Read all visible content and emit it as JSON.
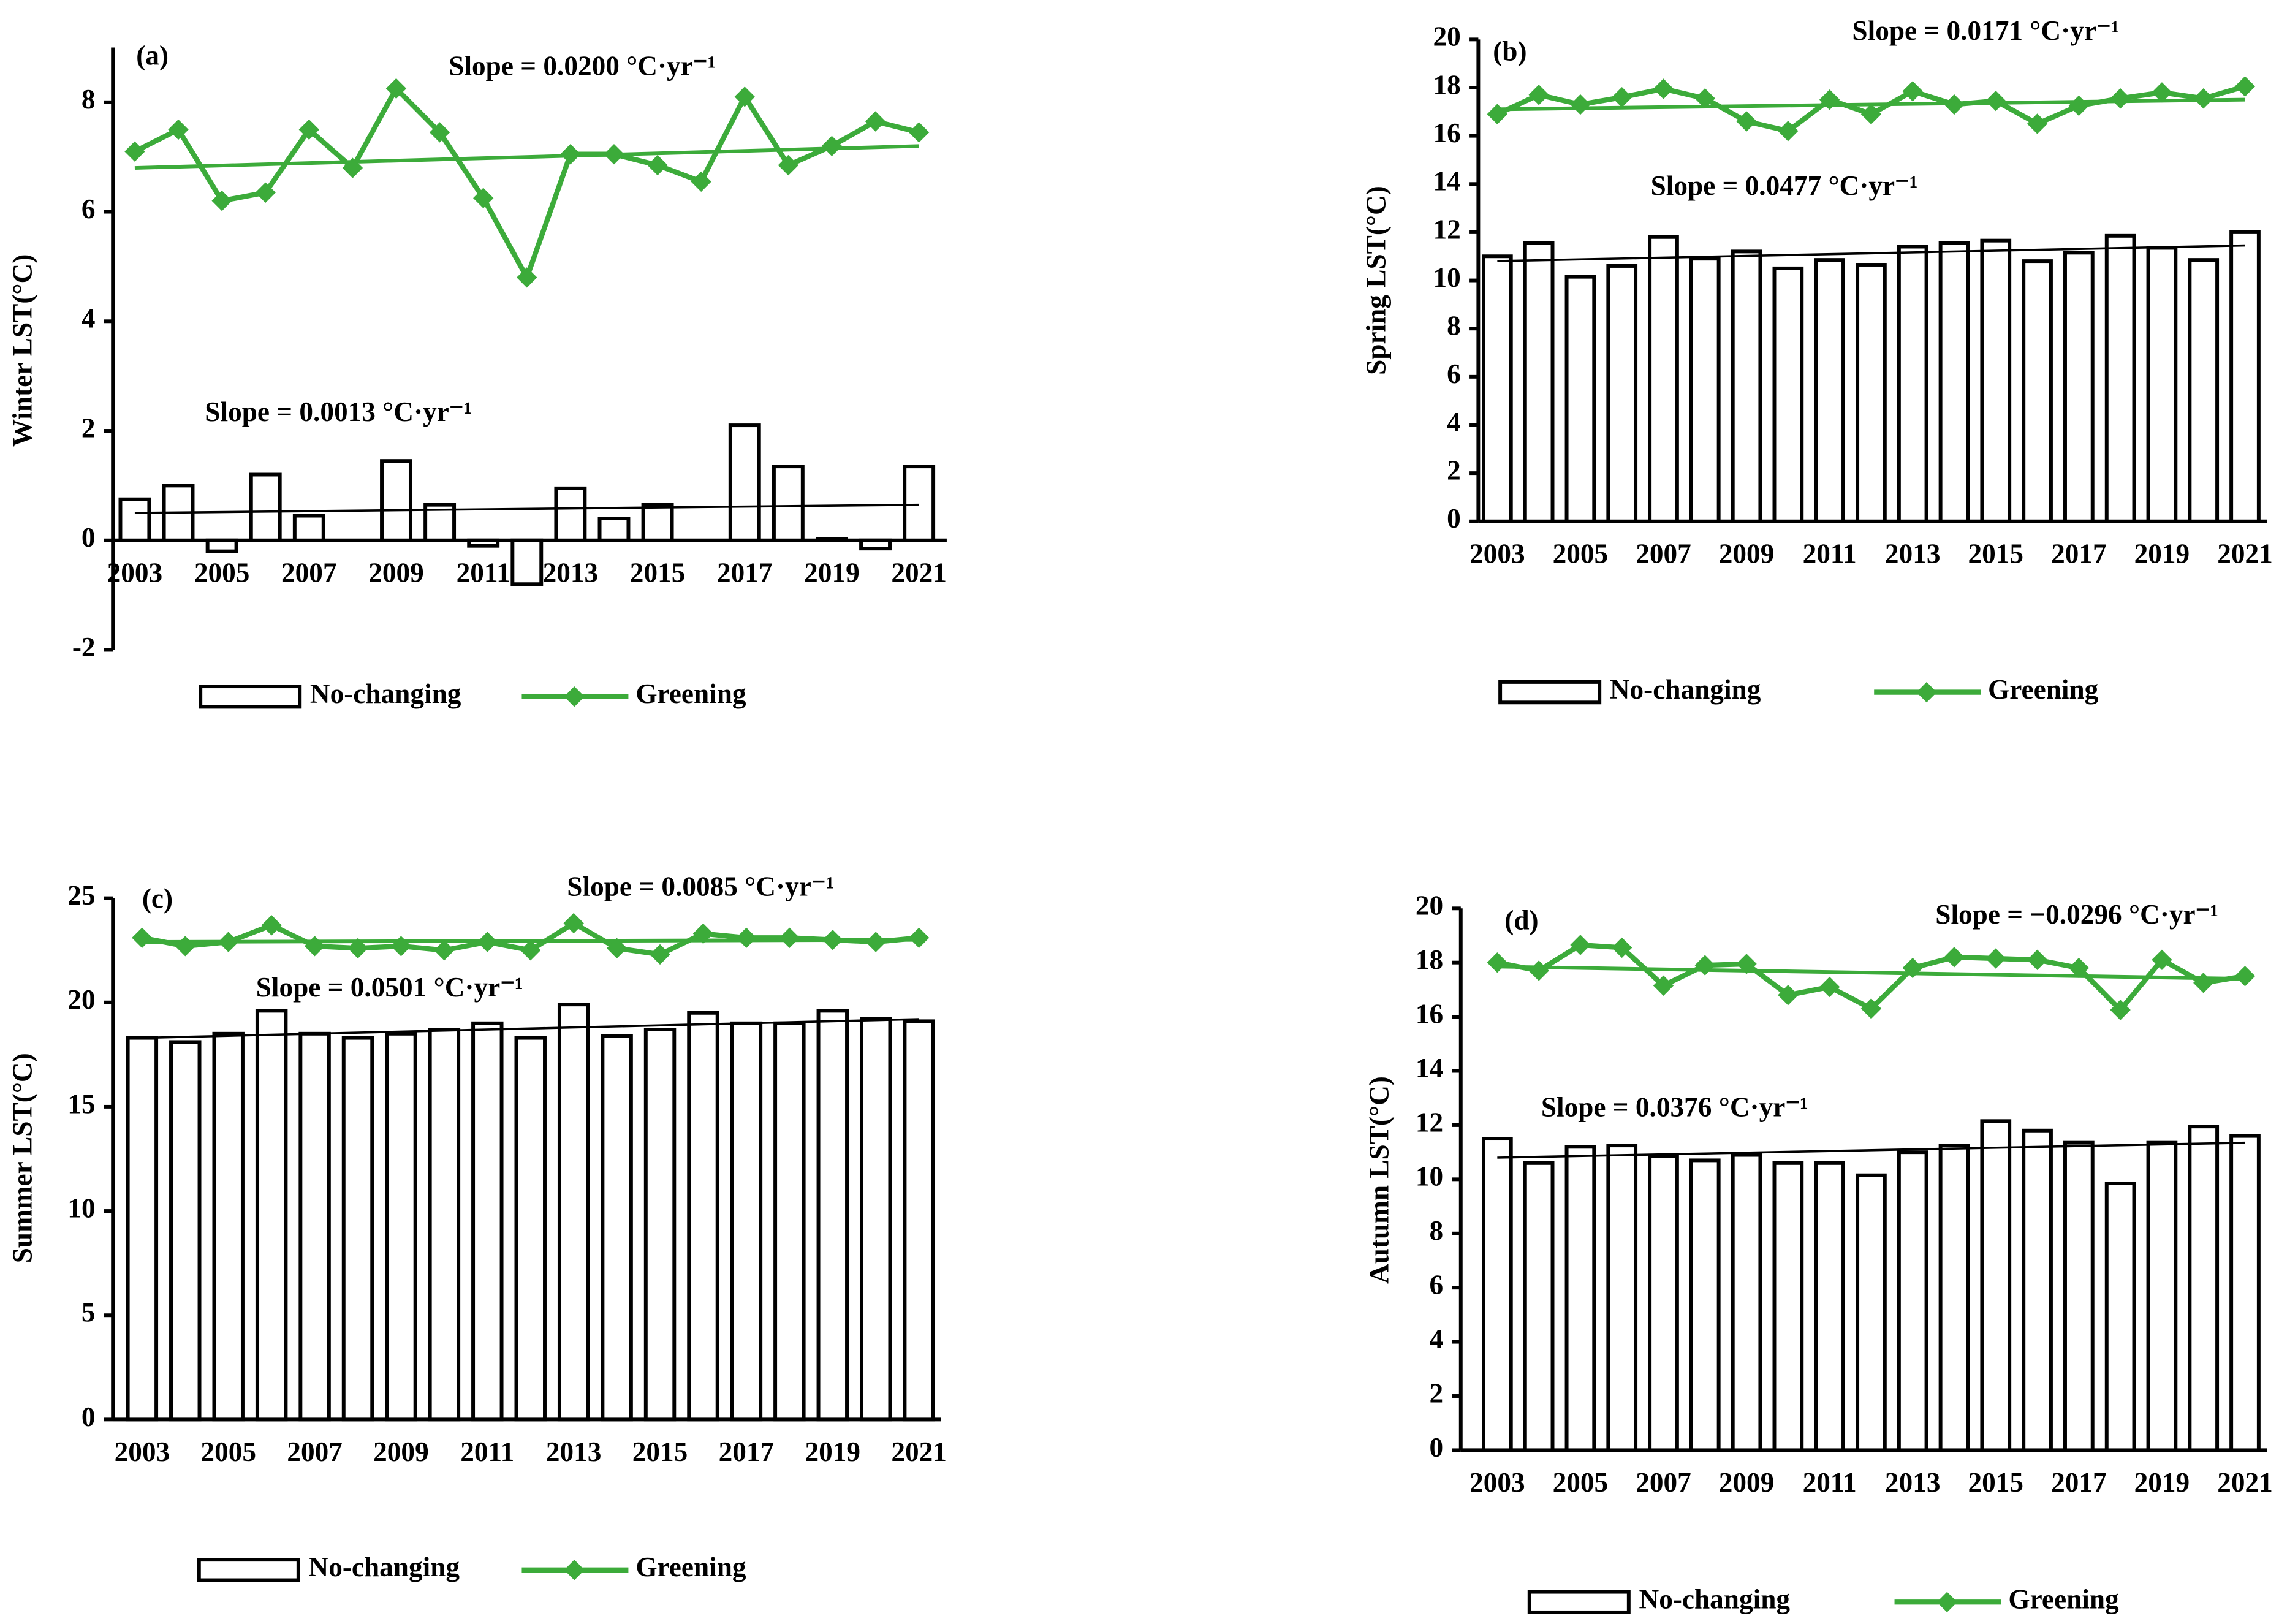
{
  "chart_data": [
    {
      "type": "combo",
      "panel_label": "(a)",
      "ylabel": "Winter  LST(°C)",
      "categories": [
        "2003",
        null,
        "2005",
        null,
        "2007",
        null,
        "2009",
        null,
        "2011",
        null,
        "2013",
        null,
        "2015",
        null,
        "2017",
        null,
        "2019",
        null,
        "2021"
      ],
      "ylim": [
        -2,
        9
      ],
      "yticks": [
        -2,
        0,
        2,
        4,
        6,
        8
      ],
      "series": [
        {
          "name": "No-changing",
          "type": "bar",
          "color": "#ffffff",
          "trend_color": "#000000",
          "slope_label": "Slope = 0.0013 °C·yr⁻¹",
          "trend": [
            0.5,
            0.65
          ],
          "values": [
            0.75,
            1.0,
            -0.2,
            1.2,
            0.45,
            0,
            1.45,
            0.65,
            -0.1,
            -0.8,
            0.95,
            0.4,
            0.65,
            0,
            2.1,
            1.35,
            0.02,
            -0.15,
            1.35
          ]
        },
        {
          "name": "Greening",
          "type": "line",
          "color": "#3cab3a",
          "trend_color": "#3cab3a",
          "slope_label": "Slope = 0.0200  °C·yr⁻¹",
          "trend": [
            6.8,
            7.2
          ],
          "values": [
            7.1,
            7.5,
            6.2,
            6.35,
            7.5,
            6.8,
            8.25,
            7.45,
            6.25,
            4.8,
            7.05,
            7.05,
            6.85,
            6.55,
            8.1,
            6.85,
            7.2,
            7.65,
            7.45
          ]
        }
      ]
    },
    {
      "type": "combo",
      "panel_label": "(b)",
      "ylabel": "Spring  LST(°C)",
      "categories": [
        "2003",
        null,
        "2005",
        null,
        "2007",
        null,
        "2009",
        null,
        "2011",
        null,
        "2013",
        null,
        "2015",
        null,
        "2017",
        null,
        "2019",
        null,
        "2021"
      ],
      "ylim": [
        0,
        20
      ],
      "yticks": [
        0,
        2,
        4,
        6,
        8,
        10,
        12,
        14,
        16,
        18,
        20
      ],
      "series": [
        {
          "name": "No-changing",
          "type": "bar",
          "color": "#ffffff",
          "trend_color": "#000000",
          "slope_label": "Slope = 0.0477 °C·yr⁻¹",
          "trend": [
            10.8,
            11.45
          ],
          "values": [
            11.0,
            11.55,
            10.15,
            10.6,
            11.8,
            10.9,
            11.2,
            10.5,
            10.85,
            10.65,
            11.4,
            11.55,
            11.65,
            10.8,
            11.15,
            11.85,
            11.35,
            10.85,
            12.0
          ]
        },
        {
          "name": "Greening",
          "type": "line",
          "color": "#3cab3a",
          "trend_color": "#3cab3a",
          "slope_label": "Slope = 0.0171 °C·yr⁻¹",
          "trend": [
            17.1,
            17.5
          ],
          "values": [
            16.9,
            17.7,
            17.3,
            17.6,
            17.95,
            17.55,
            16.6,
            16.2,
            17.5,
            16.9,
            17.85,
            17.3,
            17.45,
            16.5,
            17.25,
            17.55,
            17.8,
            17.55,
            18.05
          ]
        }
      ]
    },
    {
      "type": "combo",
      "panel_label": "(c)",
      "ylabel": "Summer  LST(°C)",
      "categories": [
        "2003",
        null,
        "2005",
        null,
        "2007",
        null,
        "2009",
        null,
        "2011",
        null,
        "2013",
        null,
        "2015",
        null,
        "2017",
        null,
        "2019",
        null,
        "2021"
      ],
      "ylim": [
        0,
        25
      ],
      "yticks": [
        0,
        5,
        10,
        15,
        20,
        25
      ],
      "series": [
        {
          "name": "No-changing",
          "type": "bar",
          "color": "#ffffff",
          "trend_color": "#000000",
          "slope_label": "Slope = 0.0501 °C·yr⁻¹",
          "trend": [
            18.3,
            19.2
          ],
          "values": [
            18.3,
            18.1,
            18.5,
            19.6,
            18.5,
            18.3,
            18.5,
            18.7,
            19.0,
            18.3,
            19.9,
            18.4,
            18.7,
            19.5,
            19.0,
            19.0,
            19.6,
            19.2,
            19.1
          ]
        },
        {
          "name": "Greening",
          "type": "line",
          "color": "#3cab3a",
          "trend_color": "#3cab3a",
          "slope_label": "Slope = 0.0085 °C·yr⁻¹",
          "trend": [
            22.9,
            23.0
          ],
          "values": [
            23.1,
            22.7,
            22.9,
            23.7,
            22.7,
            22.6,
            22.7,
            22.5,
            22.9,
            22.5,
            23.8,
            22.6,
            22.3,
            23.3,
            23.1,
            23.1,
            23.0,
            22.9,
            23.1
          ]
        }
      ]
    },
    {
      "type": "combo",
      "panel_label": "(d)",
      "ylabel": "Autumn LST(°C)",
      "categories": [
        "2003",
        null,
        "2005",
        null,
        "2007",
        null,
        "2009",
        null,
        "2011",
        null,
        "2013",
        null,
        "2015",
        null,
        "2017",
        null,
        "2019",
        null,
        "2021"
      ],
      "ylim": [
        0,
        20
      ],
      "yticks": [
        0,
        2,
        4,
        6,
        8,
        10,
        12,
        14,
        16,
        18,
        20
      ],
      "series": [
        {
          "name": "No-changing",
          "type": "bar",
          "color": "#ffffff",
          "trend_color": "#000000",
          "slope_label": "Slope = 0.0376 °C·yr⁻¹",
          "trend": [
            10.8,
            11.35
          ],
          "values": [
            11.5,
            10.6,
            11.2,
            11.25,
            10.85,
            10.7,
            10.9,
            10.6,
            10.6,
            10.15,
            11.0,
            11.25,
            12.15,
            11.8,
            11.35,
            9.85,
            11.35,
            11.95,
            11.6
          ]
        },
        {
          "name": "Greening",
          "type": "line",
          "color": "#3cab3a",
          "trend_color": "#3cab3a",
          "slope_label": "Slope = −0.0296 °C·yr⁻¹",
          "trend": [
            17.85,
            17.4
          ],
          "values": [
            18.0,
            17.7,
            18.65,
            18.55,
            17.15,
            17.9,
            17.95,
            16.8,
            17.1,
            16.3,
            17.8,
            18.2,
            18.15,
            18.1,
            17.8,
            16.25,
            18.1,
            17.25,
            17.5
          ]
        }
      ]
    }
  ]
}
